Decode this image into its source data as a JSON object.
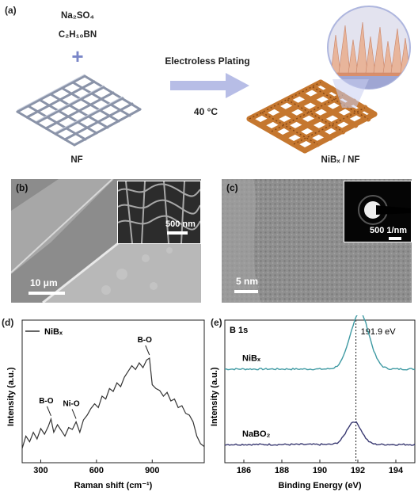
{
  "panel_a": {
    "label": "(a)",
    "reagent_1": "Na₂SO₄",
    "reagent_2": "C₂H₁₀BN",
    "plus": "+",
    "arrow_label": "Electroless Plating",
    "temperature": "40 °C",
    "substrate_label": "NF",
    "product_label": "NiBₓ / NF",
    "colors": {
      "mesh": "#8a93a8",
      "coated_mesh": "#c5772f",
      "arrow": "#b7bde6",
      "spikes": "#e8b59b"
    }
  },
  "panel_b": {
    "label": "(b)",
    "scale_main": "10 μm",
    "scale_inset": "500 nm"
  },
  "panel_c": {
    "label": "(c)",
    "scale_main": "5 nm",
    "scale_inset": "500 1/nm"
  },
  "panel_d": {
    "label": "(d)",
    "chart_data": {
      "type": "line",
      "legend": [
        "NiBₓ"
      ],
      "xlabel": "Raman shift (cm⁻¹)",
      "ylabel": "Intensity (a.u.)",
      "xlim": [
        200,
        1180
      ],
      "xticks": [
        300,
        600,
        900
      ],
      "annotations": [
        {
          "text": "B-O",
          "x": 355
        },
        {
          "text": "Ni-O",
          "x": 490
        },
        {
          "text": "B-O",
          "x": 885
        }
      ],
      "series": [
        {
          "name": "NiBₓ",
          "color": "#333333",
          "x": [
            200,
            220,
            240,
            260,
            280,
            300,
            320,
            340,
            355,
            370,
            390,
            410,
            430,
            450,
            470,
            490,
            510,
            530,
            550,
            570,
            590,
            610,
            630,
            650,
            670,
            690,
            710,
            730,
            750,
            770,
            790,
            810,
            830,
            850,
            870,
            885,
            900,
            920,
            940,
            960,
            980,
            1000,
            1020,
            1040,
            1060,
            1080,
            1100,
            1120,
            1140,
            1160,
            1180
          ],
          "y": [
            0.05,
            0.18,
            0.12,
            0.22,
            0.15,
            0.26,
            0.2,
            0.28,
            0.36,
            0.22,
            0.3,
            0.24,
            0.18,
            0.27,
            0.25,
            0.33,
            0.22,
            0.35,
            0.4,
            0.47,
            0.52,
            0.48,
            0.6,
            0.57,
            0.68,
            0.65,
            0.74,
            0.7,
            0.8,
            0.86,
            0.92,
            0.88,
            0.95,
            0.9,
            0.98,
            1.0,
            0.72,
            0.68,
            0.66,
            0.6,
            0.64,
            0.55,
            0.57,
            0.48,
            0.5,
            0.42,
            0.4,
            0.33,
            0.18,
            0.1,
            0.07
          ]
        }
      ]
    }
  },
  "panel_e": {
    "label": "(e)",
    "chart_data": {
      "type": "line",
      "title": "B 1s",
      "xlabel": "Binding Energy (eV)",
      "ylabel": "Intensity (a.u.)",
      "xlim": [
        185,
        195
      ],
      "xticks": [
        186,
        188,
        190,
        192,
        194
      ],
      "reference_line": {
        "x": 191.9,
        "label": "191.9 eV"
      },
      "series": [
        {
          "name": "NiBₓ",
          "color": "#3f9aa3",
          "peak": 192.1,
          "height": 0.42,
          "width": 0.7,
          "baseline": 0.66
        },
        {
          "name": "NaBO₂",
          "color": "#3a3a72",
          "peak": 191.8,
          "height": 0.17,
          "width": 0.55,
          "baseline": 0.1
        }
      ]
    }
  }
}
